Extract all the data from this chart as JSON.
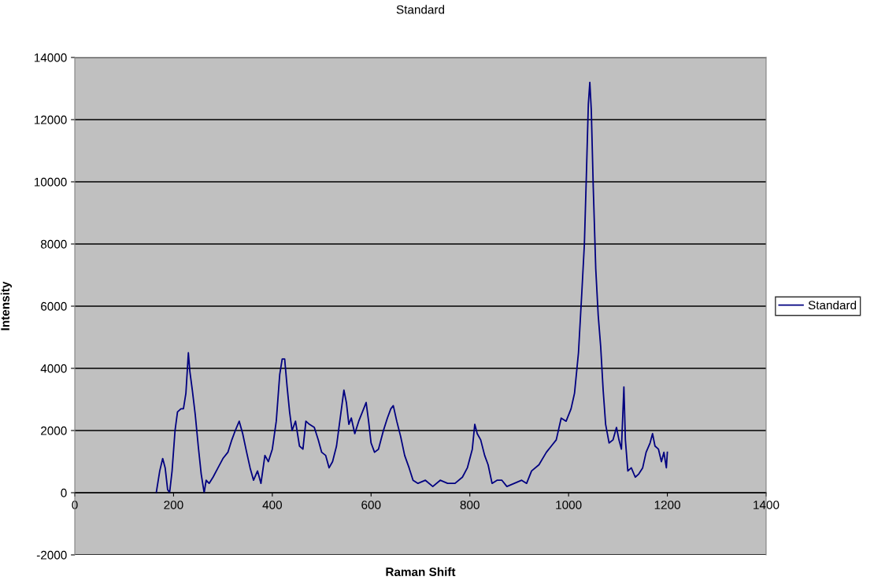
{
  "chart_data": {
    "type": "line",
    "title": "Standard",
    "xlabel": "Raman Shift",
    "ylabel": "Intensity",
    "xlim": [
      0,
      1400
    ],
    "xticks": [
      0,
      200,
      400,
      600,
      800,
      1000,
      1200,
      1400
    ],
    "ylim": [
      -2000,
      14000
    ],
    "yticks": [
      -2000,
      0,
      2000,
      4000,
      6000,
      8000,
      10000,
      12000,
      14000
    ],
    "grid": "y",
    "legend": "right",
    "marker": "none",
    "line_style": "solid",
    "series": [
      {
        "name": "Standard",
        "color": "#000080",
        "x": [
          165,
          172,
          178,
          183,
          188,
          192,
          197,
          203,
          208,
          215,
          220,
          225,
          230,
          233,
          238,
          244,
          250,
          256,
          262,
          266,
          272,
          280,
          290,
          300,
          310,
          318,
          325,
          333,
          340,
          348,
          355,
          362,
          370,
          377,
          385,
          392,
          400,
          408,
          415,
          420,
          425,
          430,
          435,
          440,
          447,
          455,
          462,
          468,
          475,
          485,
          493,
          500,
          508,
          515,
          522,
          530,
          540,
          545,
          550,
          555,
          560,
          567,
          575,
          585,
          590,
          595,
          600,
          607,
          615,
          625,
          633,
          640,
          645,
          652,
          660,
          668,
          677,
          685,
          695,
          710,
          725,
          740,
          755,
          770,
          785,
          795,
          805,
          810,
          815,
          822,
          830,
          837,
          845,
          855,
          865,
          875,
          890,
          905,
          915,
          925,
          940,
          955,
          965,
          975,
          985,
          995,
          1005,
          1012,
          1020,
          1027,
          1032,
          1036,
          1040,
          1043,
          1046,
          1050,
          1055,
          1060,
          1065,
          1070,
          1075,
          1082,
          1090,
          1097,
          1102,
          1107,
          1112,
          1115,
          1120,
          1127,
          1135,
          1142,
          1150,
          1157,
          1165,
          1170,
          1175,
          1182,
          1188,
          1193,
          1198,
          1200
        ],
        "values": [
          0,
          700,
          1100,
          800,
          100,
          0,
          700,
          2000,
          2600,
          2700,
          2700,
          3200,
          4500,
          3900,
          3300,
          2500,
          1500,
          600,
          0,
          400,
          300,
          500,
          800,
          1100,
          1300,
          1700,
          2000,
          2300,
          1900,
          1300,
          800,
          400,
          700,
          300,
          1200,
          1000,
          1400,
          2300,
          3800,
          4300,
          4300,
          3400,
          2600,
          2000,
          2300,
          1500,
          1400,
          2300,
          2200,
          2100,
          1700,
          1300,
          1200,
          800,
          1000,
          1500,
          2700,
          3300,
          2900,
          2200,
          2400,
          1900,
          2300,
          2700,
          2900,
          2300,
          1600,
          1300,
          1400,
          2000,
          2400,
          2700,
          2800,
          2300,
          1800,
          1200,
          800,
          400,
          300,
          400,
          200,
          400,
          300,
          300,
          500,
          800,
          1400,
          2200,
          1900,
          1700,
          1200,
          900,
          300,
          400,
          400,
          200,
          300,
          400,
          300,
          700,
          900,
          1300,
          1500,
          1700,
          2400,
          2300,
          2700,
          3200,
          4500,
          6500,
          8000,
          10200,
          12500,
          13200,
          12300,
          9800,
          7200,
          5700,
          4700,
          3300,
          2200,
          1600,
          1700,
          2100,
          1700,
          1400,
          3400,
          1700,
          700,
          800,
          500,
          600,
          800,
          1300,
          1600,
          1900,
          1500,
          1400,
          1000,
          1300,
          800,
          1300
        ]
      }
    ]
  }
}
